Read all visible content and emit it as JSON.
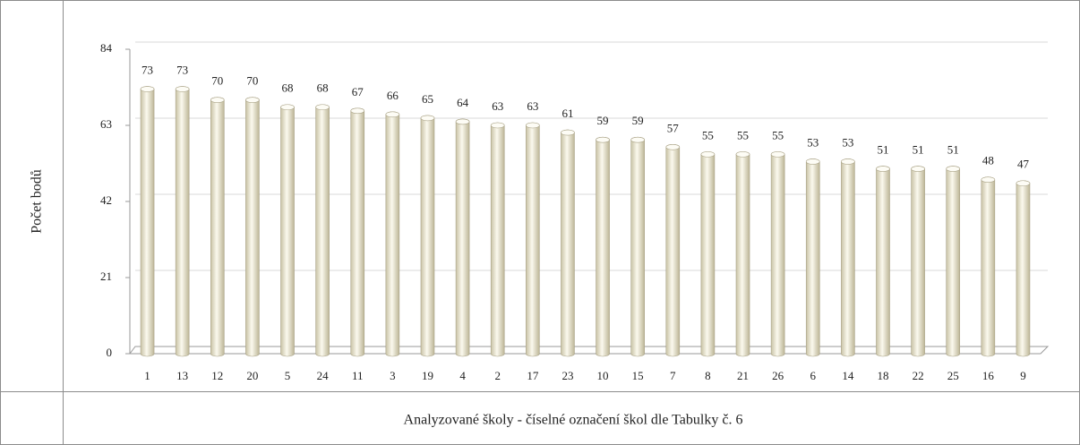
{
  "chart_data": {
    "type": "bar",
    "y_label": "Počet bodů",
    "x_label": "Analyzované školy - číselné označení škol dle Tabulky č. 6",
    "categories": [
      "1",
      "13",
      "12",
      "20",
      "5",
      "24",
      "11",
      "3",
      "19",
      "4",
      "2",
      "17",
      "23",
      "10",
      "15",
      "7",
      "8",
      "21",
      "26",
      "6",
      "14",
      "18",
      "22",
      "25",
      "16",
      "9"
    ],
    "values": [
      73,
      73,
      70,
      70,
      68,
      68,
      67,
      66,
      65,
      64,
      63,
      63,
      61,
      59,
      59,
      57,
      55,
      55,
      55,
      53,
      53,
      51,
      51,
      51,
      48,
      47
    ],
    "color": "#f3efdc",
    "ylim": [
      0,
      84
    ],
    "yticks": [
      0,
      21,
      42,
      63,
      84
    ],
    "grid": true
  }
}
